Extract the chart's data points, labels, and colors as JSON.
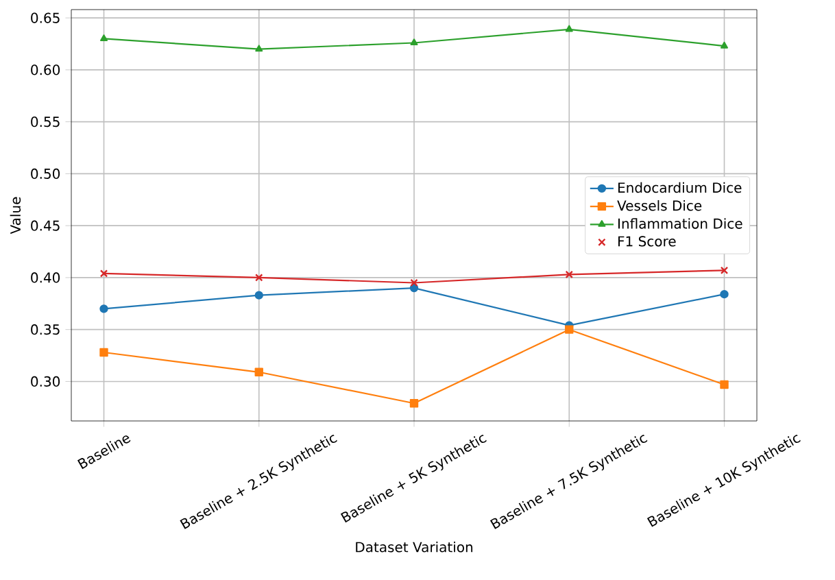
{
  "chart_data": {
    "type": "line",
    "xlabel": "Dataset Variation",
    "ylabel": "Value",
    "categories": [
      "Baseline",
      "Baseline + 2.5K Synthetic",
      "Baseline + 5K Synthetic",
      "Baseline + 7.5K Synthetic",
      "Baseline + 10K Synthetic"
    ],
    "series": [
      {
        "name": "Endocardium Dice",
        "color": "#1f77b4",
        "marker": "circle",
        "values": [
          0.37,
          0.383,
          0.39,
          0.354,
          0.384
        ]
      },
      {
        "name": "Vessels Dice",
        "color": "#ff7f0e",
        "marker": "square",
        "values": [
          0.328,
          0.309,
          0.279,
          0.35,
          0.297
        ]
      },
      {
        "name": "Inflammation Dice",
        "color": "#2ca02c",
        "marker": "triangle",
        "values": [
          0.63,
          0.62,
          0.626,
          0.639,
          0.623
        ]
      },
      {
        "name": "F1 Score",
        "color": "#d62728",
        "marker": "cross",
        "values": [
          0.404,
          0.4,
          0.395,
          0.403,
          0.407
        ]
      }
    ],
    "ylim": [
      0.262,
      0.658
    ],
    "yticks": [
      {
        "value": 0.3,
        "label": "0.30"
      },
      0.35,
      {
        "value": 0.4,
        "label": "0.40"
      },
      0.45,
      {
        "value": 0.5,
        "label": "0.50"
      },
      0.55,
      {
        "value": 0.6,
        "label": "0.60"
      },
      0.65
    ],
    "grid": true,
    "legend": "center right",
    "line_style": "solid"
  }
}
